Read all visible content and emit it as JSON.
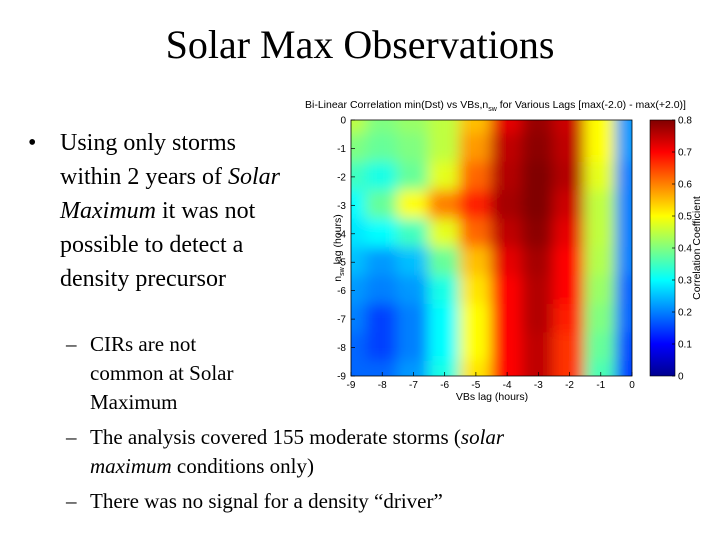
{
  "slide": {
    "title": "Solar Max Observations",
    "bullet": "Using only storms within 2 years of",
    "bullet_italic": "Solar Maximum",
    "bullet_end": "it was not possible to detect a density precursor",
    "sub1": "CIRs are not common at Solar Maximum",
    "sub2_a": "The analysis covered 155 moderate storms (",
    "sub2_italic": "solar maximum",
    "sub2_b": " conditions only)",
    "sub3": "There was no signal for a density “driver”"
  },
  "chart_data": {
    "type": "heatmap",
    "title": "Bi-Linear Correlation min(Dst) vs VBs,n",
    "title_sub": "sw",
    "title_end": " for Various Lags [max(-2.0) - max(+2.0)]",
    "xlabel": "VBs lag (hours)",
    "ylabel": "n",
    "ylabel_sub": "sw",
    "ylabel_end": " lag (hours)",
    "x_ticks": [
      -9,
      -8,
      -7,
      -6,
      -5,
      -4,
      -3,
      -2,
      -1,
      0
    ],
    "y_ticks": [
      0,
      -1,
      -2,
      -3,
      -4,
      -5,
      -6,
      -7,
      -8,
      -9
    ],
    "xlim": [
      -9,
      0
    ],
    "ylim": [
      -9,
      0
    ],
    "colorbar": {
      "label": "Correlation Coefficient",
      "ticks": [
        0.8,
        0.7,
        0.6,
        0.5,
        0.4,
        0.3,
        0.2,
        0.1,
        0
      ],
      "range": [
        0,
        0.8
      ]
    },
    "x": [
      -9,
      -8,
      -7,
      -6,
      -5,
      -4,
      -3,
      -2,
      -1,
      0
    ],
    "y": [
      0,
      -1,
      -2,
      -3,
      -4,
      -5,
      -6,
      -7,
      -8,
      -9
    ],
    "z": [
      [
        0.45,
        0.4,
        0.42,
        0.45,
        0.55,
        0.72,
        0.78,
        0.74,
        0.5,
        0.22
      ],
      [
        0.4,
        0.38,
        0.4,
        0.45,
        0.58,
        0.75,
        0.79,
        0.75,
        0.5,
        0.22
      ],
      [
        0.35,
        0.32,
        0.38,
        0.48,
        0.62,
        0.76,
        0.8,
        0.76,
        0.48,
        0.2
      ],
      [
        0.3,
        0.38,
        0.5,
        0.6,
        0.68,
        0.77,
        0.8,
        0.74,
        0.45,
        0.2
      ],
      [
        0.28,
        0.3,
        0.35,
        0.48,
        0.62,
        0.75,
        0.79,
        0.72,
        0.45,
        0.2
      ],
      [
        0.25,
        0.22,
        0.25,
        0.38,
        0.55,
        0.72,
        0.77,
        0.7,
        0.44,
        0.2
      ],
      [
        0.22,
        0.2,
        0.22,
        0.32,
        0.52,
        0.7,
        0.76,
        0.7,
        0.42,
        0.18
      ],
      [
        0.2,
        0.15,
        0.2,
        0.3,
        0.5,
        0.7,
        0.76,
        0.68,
        0.4,
        0.18
      ],
      [
        0.18,
        0.15,
        0.2,
        0.3,
        0.5,
        0.7,
        0.75,
        0.66,
        0.38,
        0.16
      ],
      [
        0.18,
        0.18,
        0.22,
        0.32,
        0.52,
        0.7,
        0.75,
        0.66,
        0.36,
        0.15
      ]
    ]
  }
}
